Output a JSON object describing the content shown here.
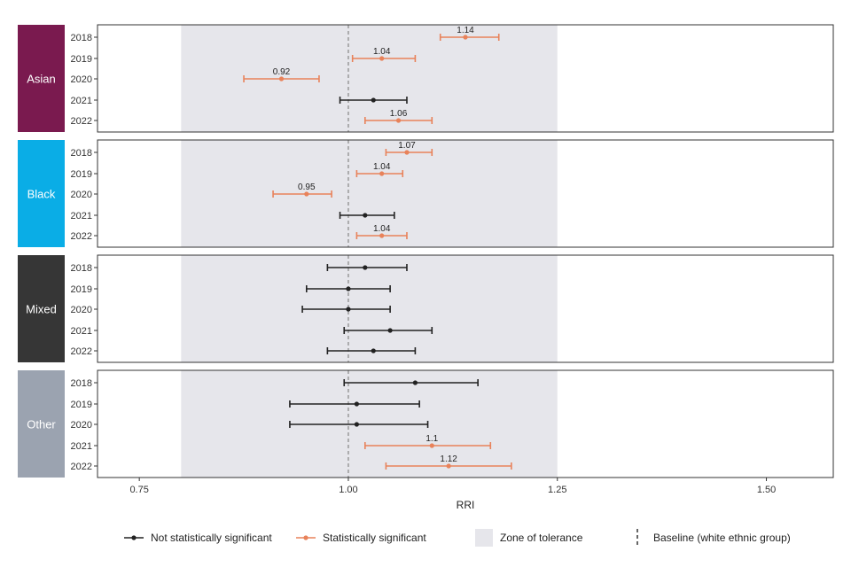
{
  "chart_data": {
    "type": "forest-plot",
    "xlabel": "RRI",
    "xlim": [
      0.7,
      1.58
    ],
    "xticks": [
      "0.75",
      "1.00",
      "1.25",
      "1.50"
    ],
    "xtick_values": [
      0.75,
      1.0,
      1.25,
      1.5
    ],
    "zone_of_tolerance": [
      0.8,
      1.25
    ],
    "baseline": 1.0,
    "years": [
      "2018",
      "2019",
      "2020",
      "2021",
      "2022"
    ],
    "colors": {
      "not_significant": "#222222",
      "significant": "#e8825a",
      "zone": "#e6e6eb",
      "baseline": "#999999"
    },
    "panels": [
      {
        "group": "Asian",
        "strip_color": "#7a1a4f",
        "points": [
          {
            "year": "2018",
            "est": 1.14,
            "lo": 1.11,
            "hi": 1.18,
            "significant": true,
            "label": "1.14"
          },
          {
            "year": "2019",
            "est": 1.04,
            "lo": 1.005,
            "hi": 1.08,
            "significant": true,
            "label": "1.04"
          },
          {
            "year": "2020",
            "est": 0.92,
            "lo": 0.875,
            "hi": 0.965,
            "significant": true,
            "label": "0.92"
          },
          {
            "year": "2021",
            "est": 1.03,
            "lo": 0.99,
            "hi": 1.07,
            "significant": false,
            "label": ""
          },
          {
            "year": "2022",
            "est": 1.06,
            "lo": 1.02,
            "hi": 1.1,
            "significant": true,
            "label": "1.06"
          }
        ]
      },
      {
        "group": "Black",
        "strip_color": "#0aade6",
        "points": [
          {
            "year": "2018",
            "est": 1.07,
            "lo": 1.045,
            "hi": 1.1,
            "significant": true,
            "label": "1.07"
          },
          {
            "year": "2019",
            "est": 1.04,
            "lo": 1.01,
            "hi": 1.065,
            "significant": true,
            "label": "1.04"
          },
          {
            "year": "2020",
            "est": 0.95,
            "lo": 0.91,
            "hi": 0.98,
            "significant": true,
            "label": "0.95"
          },
          {
            "year": "2021",
            "est": 1.02,
            "lo": 0.99,
            "hi": 1.055,
            "significant": false,
            "label": ""
          },
          {
            "year": "2022",
            "est": 1.04,
            "lo": 1.01,
            "hi": 1.07,
            "significant": true,
            "label": "1.04"
          }
        ]
      },
      {
        "group": "Mixed",
        "strip_color": "#363636",
        "points": [
          {
            "year": "2018",
            "est": 1.02,
            "lo": 0.975,
            "hi": 1.07,
            "significant": false,
            "label": ""
          },
          {
            "year": "2019",
            "est": 1.0,
            "lo": 0.95,
            "hi": 1.05,
            "significant": false,
            "label": ""
          },
          {
            "year": "2020",
            "est": 1.0,
            "lo": 0.945,
            "hi": 1.05,
            "significant": false,
            "label": ""
          },
          {
            "year": "2021",
            "est": 1.05,
            "lo": 0.995,
            "hi": 1.1,
            "significant": false,
            "label": ""
          },
          {
            "year": "2022",
            "est": 1.03,
            "lo": 0.975,
            "hi": 1.08,
            "significant": false,
            "label": ""
          }
        ]
      },
      {
        "group": "Other",
        "strip_color": "#9ba3b0",
        "points": [
          {
            "year": "2018",
            "est": 1.08,
            "lo": 0.995,
            "hi": 1.155,
            "significant": false,
            "label": ""
          },
          {
            "year": "2019",
            "est": 1.01,
            "lo": 0.93,
            "hi": 1.085,
            "significant": false,
            "label": ""
          },
          {
            "year": "2020",
            "est": 1.01,
            "lo": 0.93,
            "hi": 1.095,
            "significant": false,
            "label": ""
          },
          {
            "year": "2021",
            "est": 1.1,
            "lo": 1.02,
            "hi": 1.17,
            "significant": true,
            "label": "1.1"
          },
          {
            "year": "2022",
            "est": 1.12,
            "lo": 1.045,
            "hi": 1.195,
            "significant": true,
            "label": "1.12"
          }
        ]
      }
    ],
    "legend": {
      "position": "bottom",
      "items": [
        {
          "key": "not_significant",
          "label": "Not statistically significant"
        },
        {
          "key": "significant",
          "label": "Statistically significant"
        },
        {
          "key": "zone",
          "label": "Zone of tolerance"
        },
        {
          "key": "baseline",
          "label": "Baseline (white ethnic group)"
        }
      ]
    }
  }
}
